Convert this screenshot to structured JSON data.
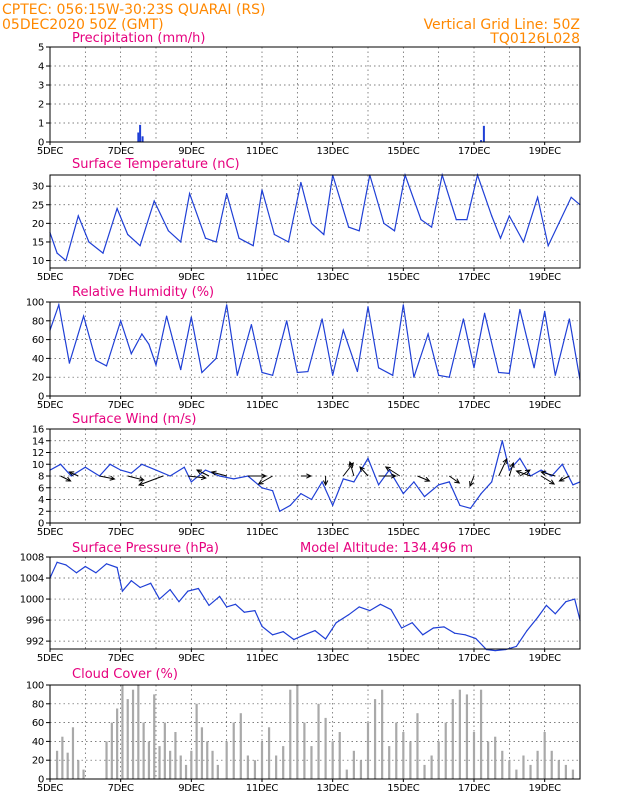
{
  "header": {
    "line1": "CPTEC:   056:15W-30:23S   QUARAI (RS)",
    "line2": "05DEC2020 50Z (GMT)",
    "grid_note": "Vertical Grid Line: 50Z",
    "code": "TQ0126L028"
  },
  "colors": {
    "header": "#ff8800",
    "title": "#e6007e",
    "line": "#1f3fd6",
    "bars": "#a9a9a9",
    "arrow": "#000000"
  },
  "xaxis": {
    "tick_labels": [
      "5DEC",
      "7DEC",
      "9DEC",
      "11DEC",
      "13DEC",
      "15DEC",
      "17DEC",
      "19DEC"
    ],
    "tick_days": [
      0,
      2,
      4,
      6,
      8,
      10,
      12,
      14
    ],
    "range_days": [
      0,
      15
    ],
    "grid_days": [
      1,
      2,
      3,
      4,
      5,
      6,
      7,
      8,
      9,
      10,
      11,
      12,
      13,
      14
    ]
  },
  "chart_data": [
    {
      "type": "bar",
      "title": "Precipitation (mm/h)",
      "ylim": [
        0,
        5
      ],
      "yticks": [
        "0",
        "1",
        "2",
        "3",
        "4",
        "5"
      ],
      "bar_color": "#1f3fd6",
      "x": [
        2.5,
        2.55,
        2.62,
        12.2,
        12.28
      ],
      "values": [
        0.5,
        0.9,
        0.3,
        0.1,
        0.85
      ]
    },
    {
      "type": "line",
      "title": "Surface Temperature (nC)",
      "ylim": [
        8,
        33
      ],
      "yticks": [
        "10",
        "15",
        "20",
        "25",
        "30"
      ],
      "ytick_values": [
        10,
        15,
        20,
        25,
        30
      ],
      "x": [
        0,
        0.2,
        0.45,
        0.8,
        1.1,
        1.5,
        1.9,
        2.2,
        2.55,
        2.95,
        3.35,
        3.7,
        3.95,
        4.4,
        4.7,
        5.0,
        5.35,
        5.75,
        6.0,
        6.35,
        6.75,
        7.1,
        7.4,
        7.75,
        8.0,
        8.45,
        8.75,
        9.05,
        9.45,
        9.75,
        10.05,
        10.5,
        10.8,
        11.1,
        11.5,
        11.8,
        12.1,
        12.5,
        12.75,
        13.0,
        13.4,
        13.8,
        14.1,
        14.4,
        14.75,
        15.0
      ],
      "values": [
        17.5,
        12,
        10,
        22,
        15,
        12,
        24,
        17,
        14,
        26,
        18,
        15,
        28,
        16,
        15,
        28,
        16,
        14,
        29,
        17,
        15,
        31,
        20,
        17,
        33,
        19,
        18,
        33,
        20,
        18,
        33,
        21,
        19,
        33,
        21,
        21,
        33,
        22,
        16,
        22,
        15,
        27,
        14,
        20,
        27,
        25
      ]
    },
    {
      "type": "line",
      "title": "Relative Humidity (%)",
      "ylim": [
        0,
        100
      ],
      "yticks": [
        "0",
        "20",
        "40",
        "60",
        "80",
        "100"
      ],
      "ytick_values": [
        0,
        20,
        40,
        60,
        80,
        100
      ],
      "x": [
        0,
        0.25,
        0.55,
        0.95,
        1.3,
        1.6,
        2.0,
        2.3,
        2.6,
        2.8,
        3.0,
        3.3,
        3.7,
        4.0,
        4.3,
        4.7,
        5.0,
        5.3,
        5.7,
        6.0,
        6.3,
        6.7,
        7.0,
        7.3,
        7.7,
        8.0,
        8.3,
        8.7,
        9.0,
        9.3,
        9.7,
        10.0,
        10.3,
        10.7,
        11.0,
        11.3,
        11.7,
        12.0,
        12.3,
        12.7,
        13.0,
        13.3,
        13.7,
        14.0,
        14.3,
        14.7,
        15.0
      ],
      "values": [
        70,
        97,
        35,
        85,
        38,
        32,
        80,
        45,
        66,
        55,
        33,
        85,
        28,
        84,
        25,
        40,
        97,
        22,
        76,
        25,
        22,
        80,
        25,
        26,
        82,
        22,
        70,
        26,
        95,
        30,
        22,
        97,
        20,
        66,
        22,
        20,
        82,
        30,
        88,
        25,
        24,
        92,
        30,
        90,
        22,
        82,
        17
      ]
    },
    {
      "type": "line",
      "title": "Surface Wind (m/s)",
      "ylim": [
        0,
        16
      ],
      "yticks": [
        "0",
        "2",
        "4",
        "6",
        "8",
        "10",
        "12",
        "14",
        "16"
      ],
      "ytick_values": [
        0,
        2,
        4,
        6,
        8,
        10,
        12,
        14,
        16
      ],
      "x": [
        0,
        0.3,
        0.6,
        1.0,
        1.4,
        1.7,
        2.0,
        2.3,
        2.6,
        3.0,
        3.4,
        3.8,
        4.0,
        4.4,
        4.8,
        5.2,
        5.6,
        6.0,
        6.3,
        6.5,
        6.8,
        7.1,
        7.4,
        7.7,
        8.0,
        8.3,
        8.6,
        9.0,
        9.3,
        9.6,
        10.0,
        10.3,
        10.6,
        11.0,
        11.3,
        11.6,
        11.9,
        12.2,
        12.5,
        12.8,
        13.0,
        13.3,
        13.6,
        13.9,
        14.2,
        14.5,
        14.8,
        15.0
      ],
      "values": [
        9,
        10,
        8,
        9.5,
        8,
        10,
        9,
        8.5,
        10,
        9,
        8,
        9.5,
        7,
        9,
        8,
        7.5,
        8,
        6,
        5.5,
        2,
        3,
        5,
        4,
        7,
        3,
        7.5,
        7,
        11,
        6.5,
        9,
        5,
        7,
        4.5,
        6.5,
        7,
        3,
        2.5,
        5,
        7,
        14,
        9,
        11,
        8,
        9,
        8,
        10,
        6.5,
        7
      ],
      "arrows": [
        {
          "x": 0.3,
          "dx": 10,
          "dy": 5
        },
        {
          "x": 0.8,
          "dx": -9,
          "dy": -4
        },
        {
          "x": 1.4,
          "dx": 15,
          "dy": 3
        },
        {
          "x": 2.2,
          "dx": 16,
          "dy": 4
        },
        {
          "x": 3.2,
          "dx": -24,
          "dy": 9
        },
        {
          "x": 3.9,
          "dx": 18,
          "dy": 2
        },
        {
          "x": 4.5,
          "dx": -12,
          "dy": -6
        },
        {
          "x": 5.0,
          "dx": -15,
          "dy": -4
        },
        {
          "x": 5.6,
          "dx": 18,
          "dy": 0
        },
        {
          "x": 6.3,
          "dx": -14,
          "dy": 8
        },
        {
          "x": 7.1,
          "dx": 10,
          "dy": 0
        },
        {
          "x": 7.8,
          "dx": 0,
          "dy": 9
        },
        {
          "x": 8.3,
          "dx": 10,
          "dy": -13
        },
        {
          "x": 8.6,
          "dx": -4,
          "dy": -14
        },
        {
          "x": 9.0,
          "dx": -8,
          "dy": -9
        },
        {
          "x": 9.3,
          "dx": 17,
          "dy": 0
        },
        {
          "x": 9.9,
          "dx": -14,
          "dy": -9
        },
        {
          "x": 10.4,
          "dx": 12,
          "dy": 5
        },
        {
          "x": 11.3,
          "dx": 10,
          "dy": 7
        },
        {
          "x": 12.0,
          "dx": -4,
          "dy": 10
        },
        {
          "x": 12.7,
          "dx": 8,
          "dy": -17
        },
        {
          "x": 13.0,
          "dx": 4,
          "dy": -13
        },
        {
          "x": 13.3,
          "dx": 10,
          "dy": -6
        },
        {
          "x": 13.6,
          "dx": -14,
          "dy": -5
        },
        {
          "x": 13.9,
          "dx": 13,
          "dy": 8
        },
        {
          "x": 14.3,
          "dx": -14,
          "dy": -4
        },
        {
          "x": 14.7,
          "dx": -10,
          "dy": 5
        }
      ]
    },
    {
      "type": "line",
      "title": "Surface Pressure (hPa)",
      "subtitle": "Model Altitude: 134.496 m",
      "ylim": [
        990.5,
        1008
      ],
      "yticks": [
        "992",
        "996",
        "1000",
        "1004",
        "1008"
      ],
      "ytick_values": [
        992,
        996,
        1000,
        1004,
        1008
      ],
      "x": [
        0,
        0.2,
        0.45,
        0.75,
        1.0,
        1.3,
        1.6,
        1.9,
        2.05,
        2.3,
        2.55,
        2.85,
        3.1,
        3.4,
        3.65,
        3.9,
        4.2,
        4.5,
        4.8,
        5.0,
        5.25,
        5.5,
        5.8,
        6.0,
        6.3,
        6.6,
        6.9,
        7.2,
        7.5,
        7.8,
        8.1,
        8.45,
        8.75,
        9.05,
        9.35,
        9.65,
        9.95,
        10.25,
        10.55,
        10.85,
        11.15,
        11.45,
        11.75,
        12.05,
        12.35,
        12.6,
        12.9,
        13.2,
        13.5,
        13.8,
        14.05,
        14.3,
        14.6,
        14.85,
        15.0
      ],
      "values": [
        1004,
        1007,
        1006.5,
        1005,
        1006.2,
        1005,
        1006.7,
        1006,
        1001.5,
        1003.5,
        1002.2,
        1003,
        1000,
        1001.8,
        999.5,
        1001.5,
        1002,
        998.8,
        1000.5,
        998.5,
        999,
        997.5,
        997.8,
        994.8,
        993.2,
        993.8,
        992.3,
        993.2,
        994,
        992.4,
        995.5,
        997,
        998.5,
        997.8,
        999,
        998,
        994.5,
        995.5,
        993.2,
        994.5,
        994.7,
        993.5,
        993.2,
        992.5,
        990.4,
        990.2,
        990.4,
        991,
        994,
        996.5,
        998.8,
        997.2,
        999.5,
        1000,
        996
      ]
    },
    {
      "type": "bar",
      "title": "Cloud Cover (%)",
      "ylim": [
        0,
        100
      ],
      "yticks": [
        "0",
        "20",
        "40",
        "60",
        "80",
        "100"
      ],
      "ytick_values": [
        0,
        20,
        40,
        60,
        80,
        100
      ],
      "bar_color": "#a9a9a9",
      "x": [
        0.2,
        0.35,
        0.5,
        0.65,
        0.8,
        0.95,
        1.6,
        1.75,
        1.9,
        2.05,
        2.2,
        2.35,
        2.5,
        2.65,
        2.8,
        2.95,
        3.1,
        3.25,
        3.4,
        3.55,
        3.7,
        3.85,
        4.0,
        4.15,
        4.3,
        4.45,
        4.6,
        4.75,
        5.0,
        5.2,
        5.4,
        5.6,
        5.8,
        6.0,
        6.2,
        6.4,
        6.6,
        6.8,
        7.0,
        7.2,
        7.4,
        7.6,
        7.8,
        8.0,
        8.2,
        8.4,
        8.6,
        8.8,
        9.0,
        9.2,
        9.4,
        9.6,
        9.8,
        10.0,
        10.2,
        10.4,
        10.6,
        10.8,
        11.0,
        11.2,
        11.4,
        11.6,
        11.8,
        12.0,
        12.2,
        12.4,
        12.6,
        12.8,
        13.0,
        13.2,
        13.4,
        13.6,
        13.8,
        14.0,
        14.2,
        14.4,
        14.6,
        14.8
      ],
      "values": [
        30,
        45,
        28,
        55,
        20,
        10,
        40,
        60,
        75,
        100,
        85,
        95,
        100,
        60,
        40,
        90,
        35,
        60,
        30,
        50,
        25,
        15,
        30,
        80,
        55,
        40,
        30,
        15,
        40,
        60,
        70,
        25,
        20,
        40,
        55,
        25,
        35,
        95,
        100,
        60,
        35,
        80,
        65,
        40,
        50,
        10,
        30,
        20,
        60,
        85,
        95,
        35,
        60,
        50,
        40,
        70,
        15,
        25,
        40,
        60,
        85,
        95,
        90,
        50,
        95,
        40,
        45,
        30,
        20,
        10,
        25,
        15,
        30,
        50,
        30,
        20,
        15,
        10
      ]
    }
  ]
}
